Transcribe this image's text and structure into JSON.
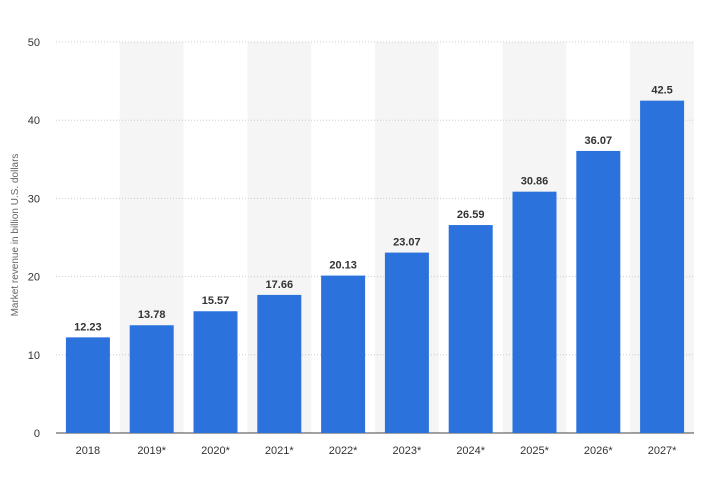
{
  "chart_data": {
    "type": "bar",
    "ylabel": "Market revenue in billion U.S. dollars",
    "xlabel": "",
    "title": "",
    "categories": [
      "2018",
      "2019*",
      "2020*",
      "2021*",
      "2022*",
      "2023*",
      "2024*",
      "2025*",
      "2026*",
      "2027*"
    ],
    "values": [
      12.23,
      13.78,
      15.57,
      17.66,
      20.13,
      23.07,
      26.59,
      30.86,
      36.07,
      42.5
    ],
    "value_labels": [
      "12.23",
      "13.78",
      "15.57",
      "17.66",
      "20.13",
      "23.07",
      "26.59",
      "30.86",
      "36.07",
      "42.5"
    ],
    "ylim": [
      0,
      50
    ],
    "yticks": [
      "0",
      "10",
      "20",
      "30",
      "40",
      "50"
    ],
    "grid": true,
    "legend": "none",
    "colors": {
      "bar": "#2b72dd",
      "grid": "#cccccc",
      "band": "#f5f5f5",
      "text": "#333333"
    }
  }
}
